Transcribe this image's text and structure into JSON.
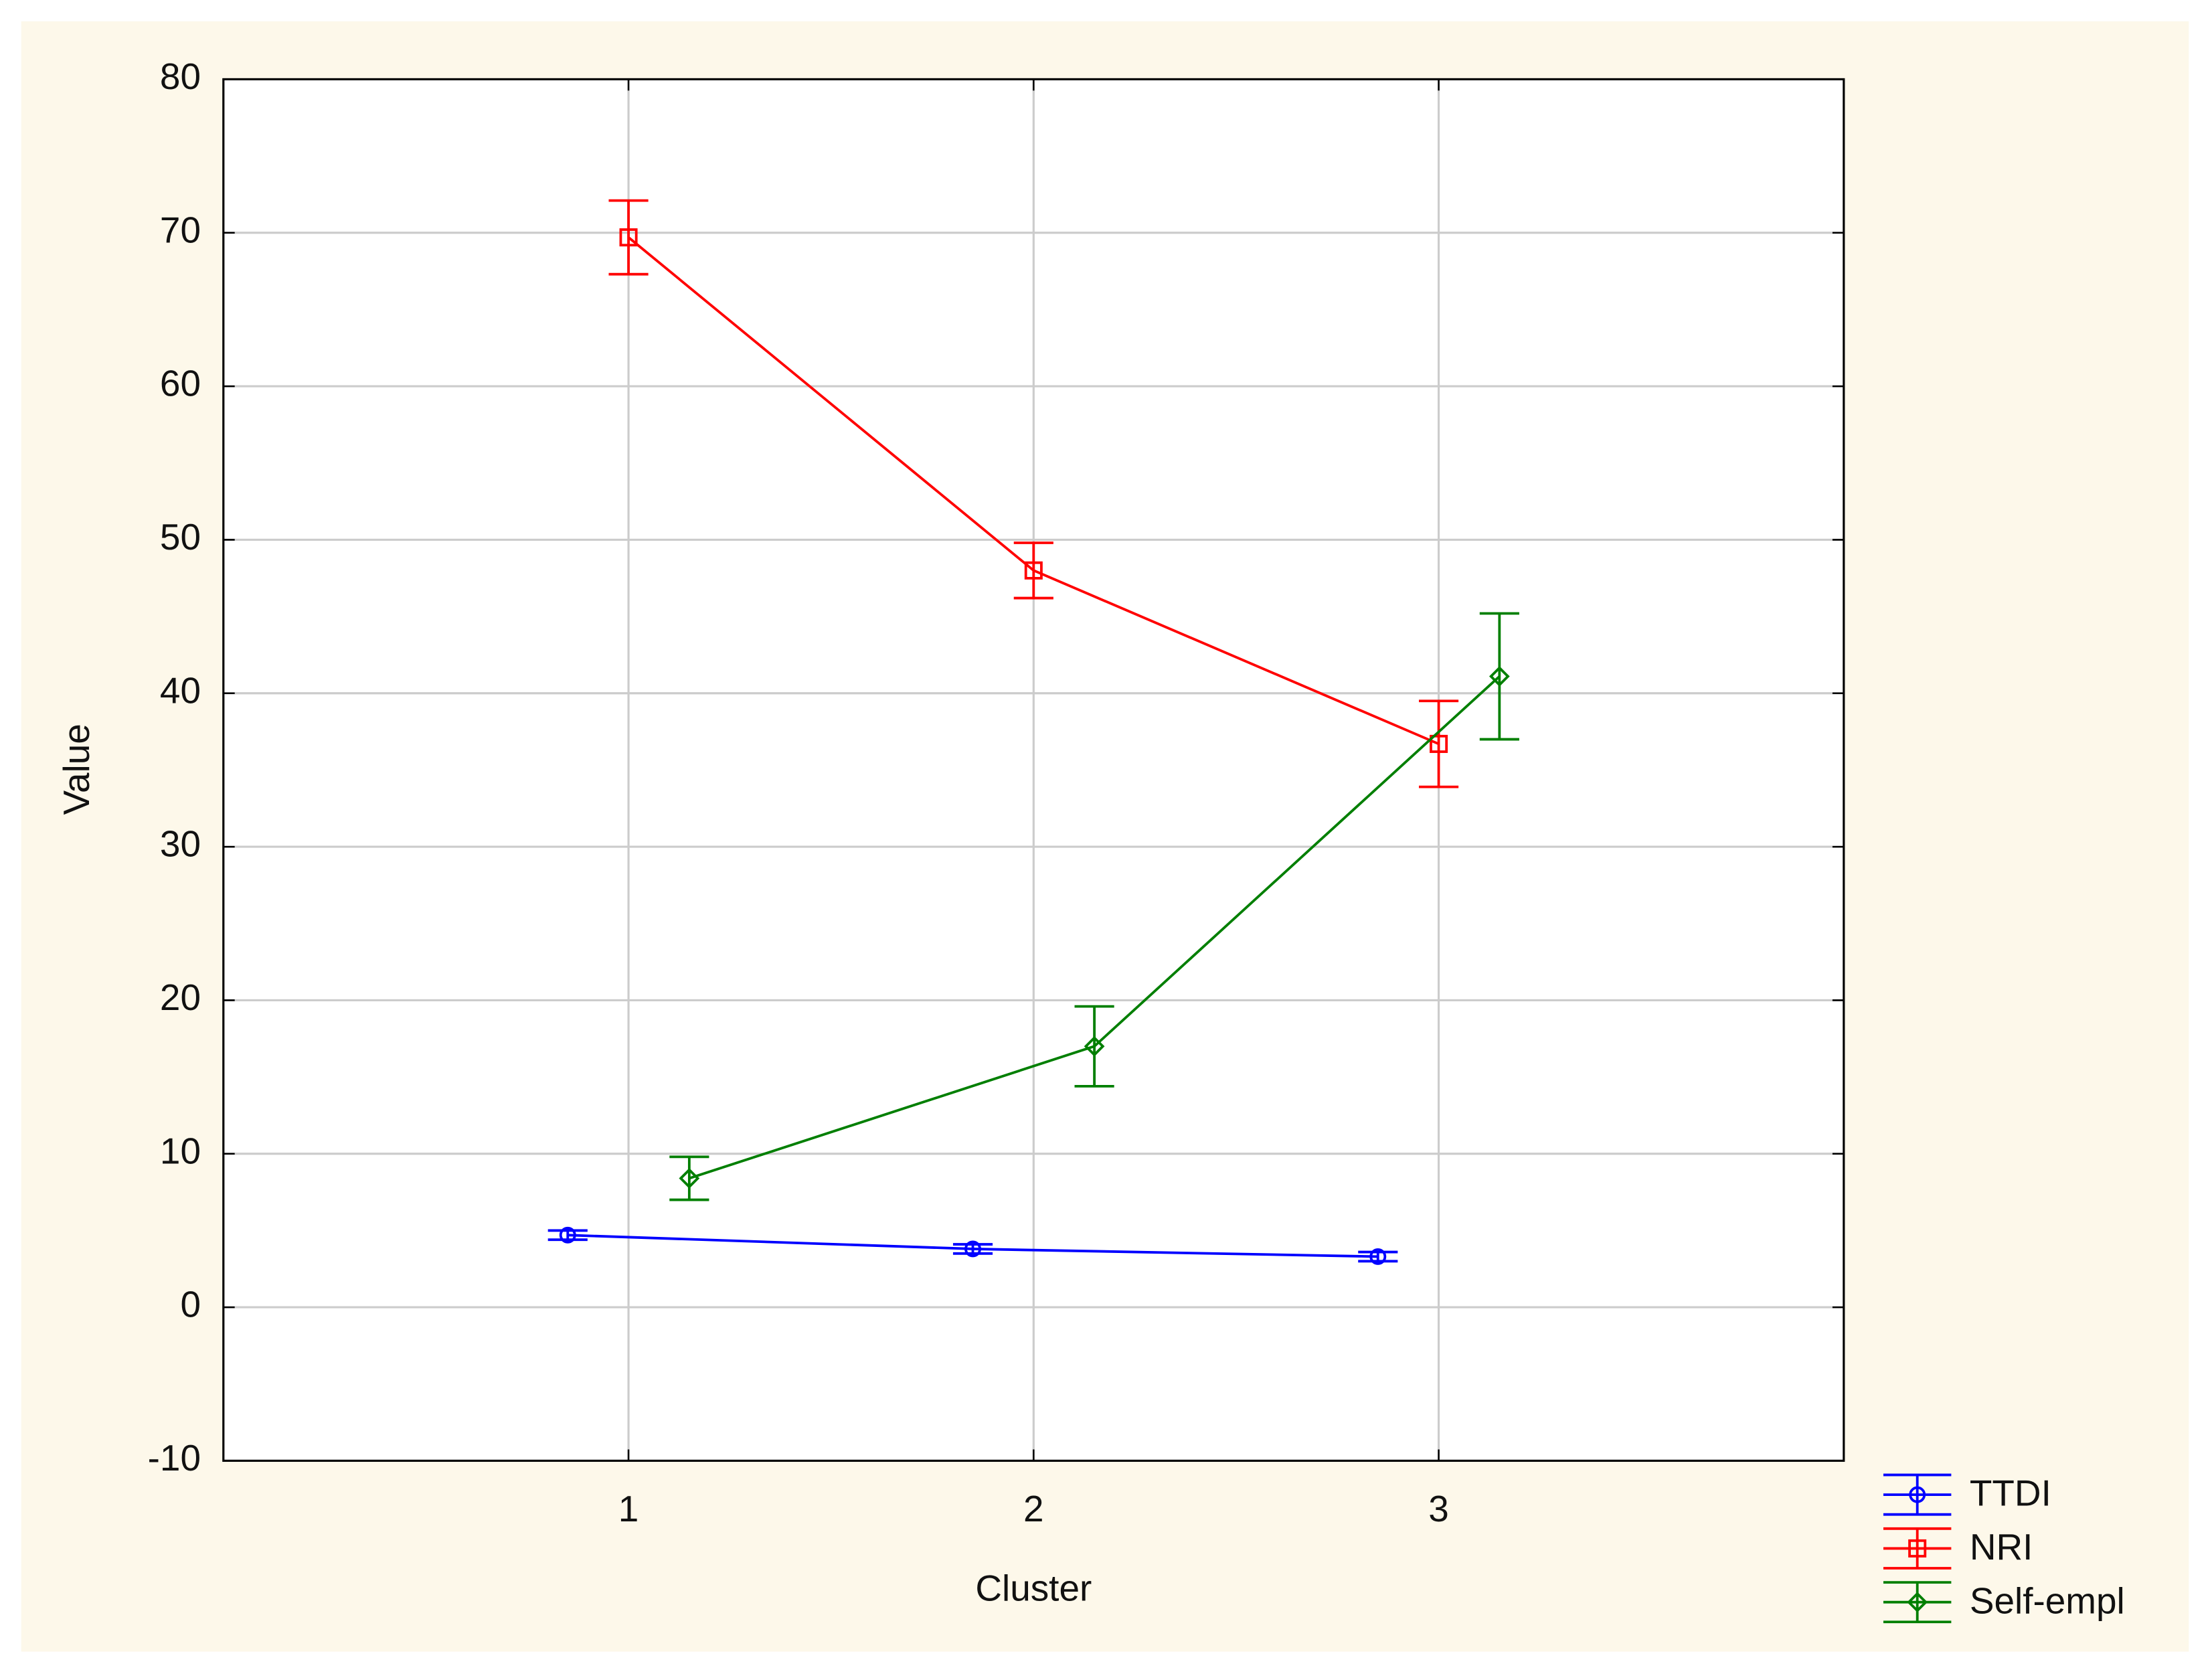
{
  "chart_data": {
    "type": "line",
    "x_label": "Cluster",
    "y_label": "Value",
    "xlim": [
      0,
      4
    ],
    "xticks": [
      1,
      2,
      3
    ],
    "ylim": [
      -10,
      80
    ],
    "yticks": [
      -10,
      0,
      10,
      20,
      30,
      40,
      50,
      60,
      70,
      80
    ],
    "grid": true,
    "legend": "bottom-right-outside",
    "series": [
      {
        "name": "TTDI",
        "color": "#0000ff",
        "marker": "circle",
        "x": [
          0.85,
          1.85,
          2.85
        ],
        "values": [
          4.7,
          3.8,
          3.3
        ],
        "errors": [
          0.3,
          0.3,
          0.3
        ]
      },
      {
        "name": "NRI",
        "color": "#ff0000",
        "marker": "square",
        "x": [
          1,
          2,
          3
        ],
        "values": [
          69.7,
          48.0,
          36.7
        ],
        "errors": [
          2.4,
          1.8,
          2.8
        ]
      },
      {
        "name": "Self-empl",
        "color": "#007f00",
        "marker": "diamond",
        "x": [
          1.15,
          2.15,
          3.15
        ],
        "values": [
          8.4,
          17.0,
          41.1
        ],
        "errors": [
          1.4,
          2.6,
          4.1
        ]
      }
    ]
  }
}
